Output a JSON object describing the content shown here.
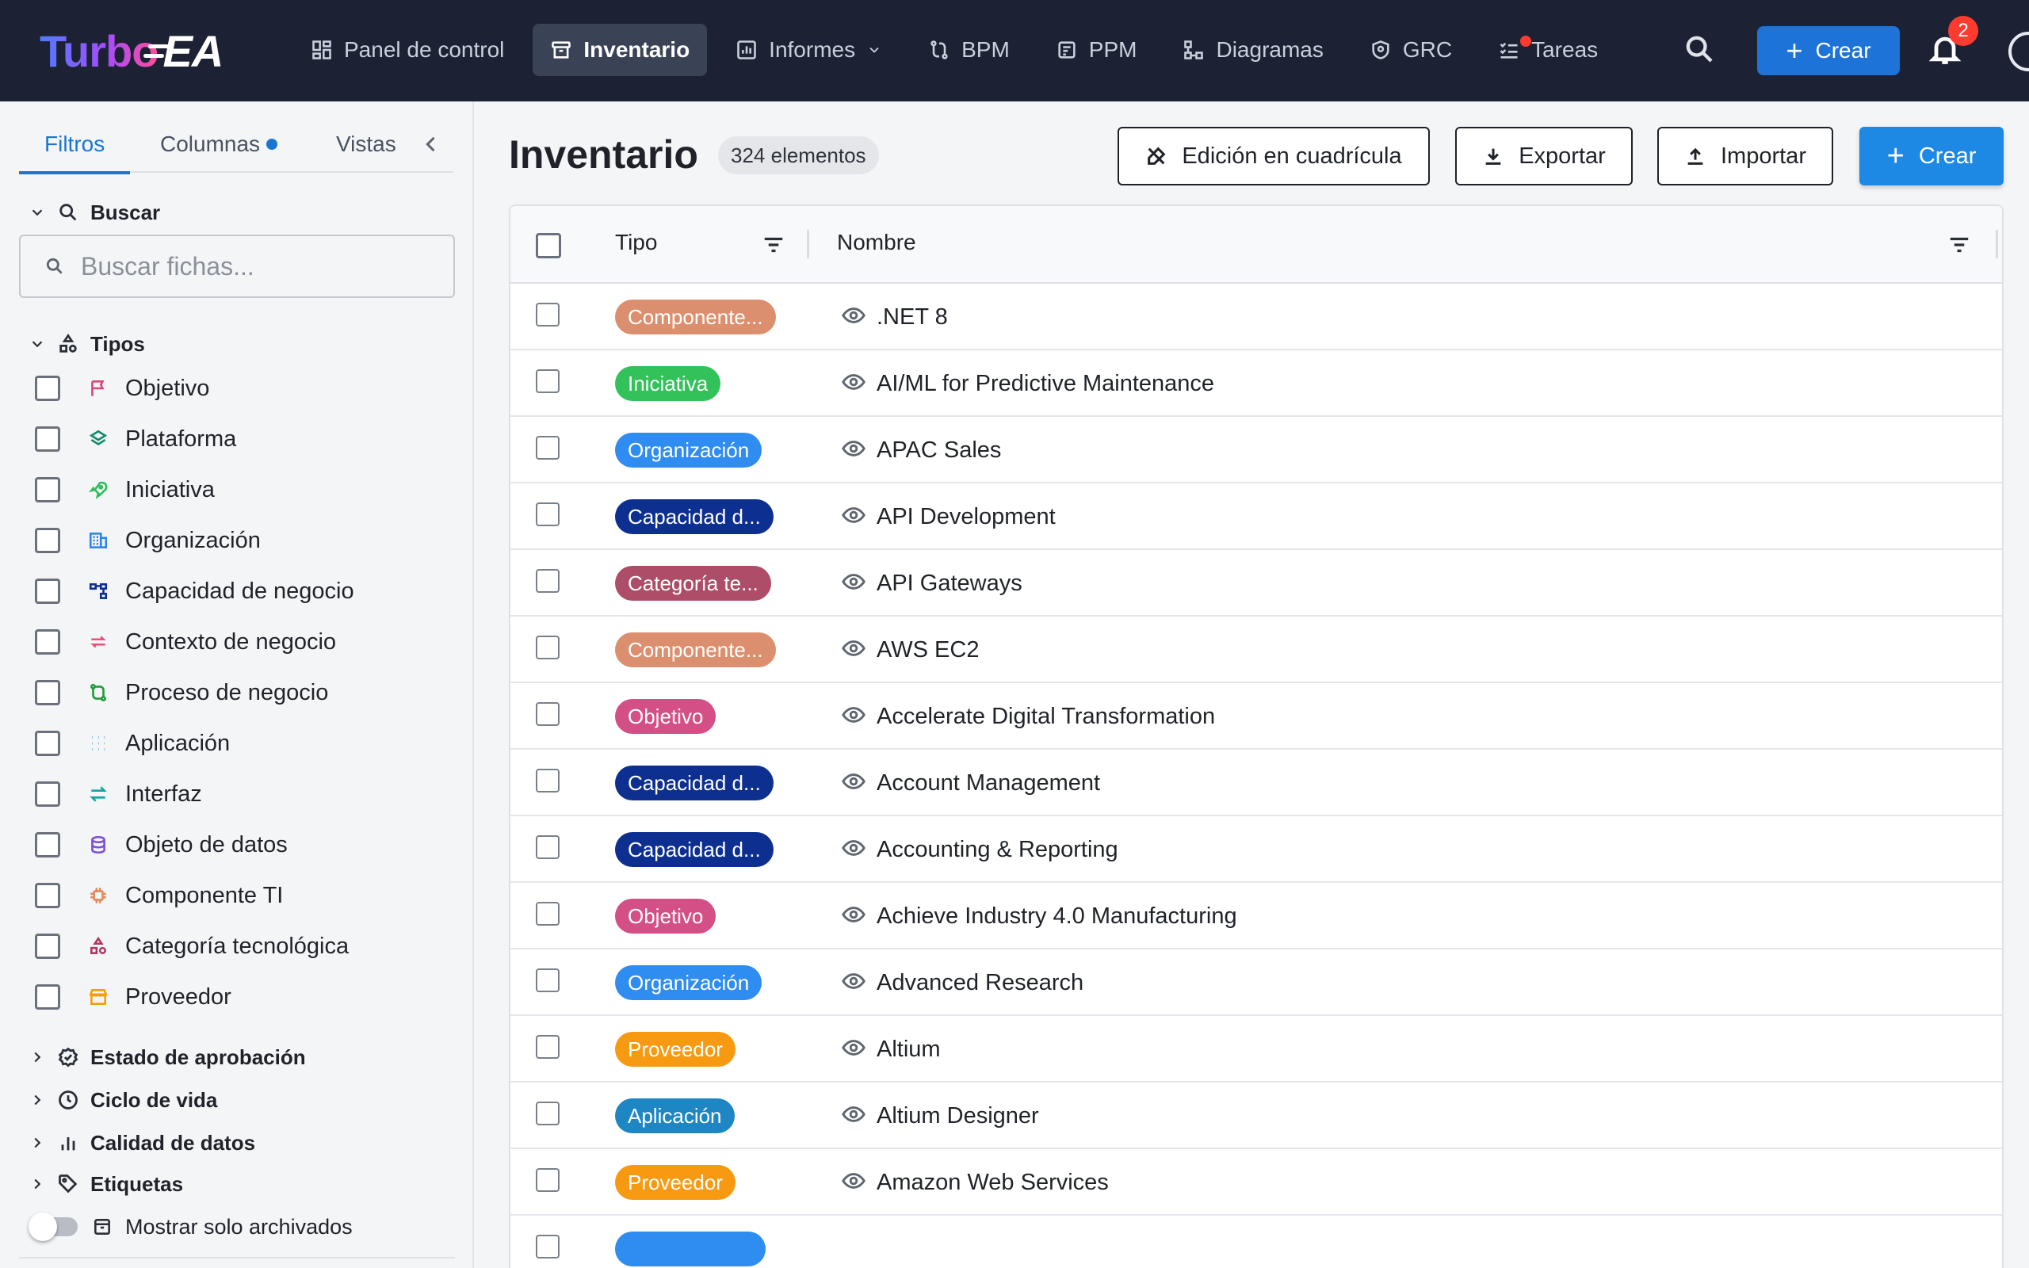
{
  "app": {
    "logo_turbo": "Turbo",
    "logo_ea": "EA"
  },
  "nav": {
    "items": [
      {
        "label": "Panel de control",
        "icon": "dashboard-icon"
      },
      {
        "label": "Inventario",
        "icon": "inventory-icon",
        "active": true
      },
      {
        "label": "Informes",
        "icon": "reports-icon",
        "dropdown": true
      },
      {
        "label": "BPM",
        "icon": "bpm-icon"
      },
      {
        "label": "PPM",
        "icon": "ppm-icon"
      },
      {
        "label": "Diagramas",
        "icon": "diagrams-icon"
      },
      {
        "label": "GRC",
        "icon": "shield-icon"
      },
      {
        "label": "Tareas",
        "icon": "tasks-icon",
        "dot": true
      }
    ],
    "create_label": "Crear",
    "notifications_count": "2"
  },
  "sidebar": {
    "tabs": {
      "filters": "Filtros",
      "columns": "Columnas",
      "views": "Vistas"
    },
    "search": {
      "title": "Buscar",
      "placeholder": "Buscar fichas..."
    },
    "types": {
      "title": "Tipos",
      "items": [
        {
          "label": "Objetivo",
          "icon": "flag-icon",
          "color": "#d9467a"
        },
        {
          "label": "Plataforma",
          "icon": "layers-icon",
          "color": "#0f8a6a"
        },
        {
          "label": "Iniciativa",
          "icon": "rocket-icon",
          "color": "#2ebd5a"
        },
        {
          "label": "Organización",
          "icon": "building-icon",
          "color": "#2f86e8"
        },
        {
          "label": "Capacidad de negocio",
          "icon": "hierarchy-icon",
          "color": "#0d2f8f"
        },
        {
          "label": "Contexto de negocio",
          "icon": "swap-icon",
          "color": "#e8507a"
        },
        {
          "label": "Proceso de negocio",
          "icon": "process-icon",
          "color": "#1f9a3a"
        },
        {
          "label": "Aplicación",
          "icon": "grid-dots-icon",
          "color": "#1e88c8"
        },
        {
          "label": "Interfaz",
          "icon": "arrows-icon",
          "color": "#0ea5a0"
        },
        {
          "label": "Objeto de datos",
          "icon": "database-icon",
          "color": "#7b4fd8"
        },
        {
          "label": "Componente TI",
          "icon": "chip-icon",
          "color": "#e08a5a"
        },
        {
          "label": "Categoría tecnológica",
          "icon": "shapes-icon",
          "color": "#b03a5e"
        },
        {
          "label": "Proveedor",
          "icon": "store-icon",
          "color": "#f59e0b"
        }
      ]
    },
    "sections": [
      {
        "label": "Estado de aprobación",
        "icon": "approval-icon"
      },
      {
        "label": "Ciclo de vida",
        "icon": "clock-icon"
      },
      {
        "label": "Calidad de datos",
        "icon": "bar-chart-icon"
      },
      {
        "label": "Etiquetas",
        "icon": "tag-icon"
      }
    ],
    "archived_toggle": "Mostrar solo archivados"
  },
  "main": {
    "title": "Inventario",
    "count": "324 elementos",
    "actions": {
      "grid_edit": "Edición en cuadrícula",
      "export": "Exportar",
      "import": "Importar",
      "create": "Crear"
    },
    "columns": {
      "type": "Tipo",
      "name": "Nombre"
    },
    "rows": [
      {
        "type": "Componente...",
        "color": "#dc8f6e",
        "name": ".NET 8"
      },
      {
        "type": "Iniciativa",
        "color": "#33c25a",
        "name": "AI/ML for Predictive Maintenance"
      },
      {
        "type": "Organización",
        "color": "#2f8cf0",
        "name": "APAC Sales"
      },
      {
        "type": "Capacidad d...",
        "color": "#0d2f8f",
        "name": "API Development"
      },
      {
        "type": "Categoría te...",
        "color": "#ad4d68",
        "name": "API Gateways"
      },
      {
        "type": "Componente...",
        "color": "#dc8f6e",
        "name": "AWS EC2"
      },
      {
        "type": "Objetivo",
        "color": "#d44f86",
        "name": "Accelerate Digital Transformation"
      },
      {
        "type": "Capacidad d...",
        "color": "#0d2f8f",
        "name": "Account Management"
      },
      {
        "type": "Capacidad d...",
        "color": "#0d2f8f",
        "name": "Accounting & Reporting"
      },
      {
        "type": "Objetivo",
        "color": "#d44f86",
        "name": "Achieve Industry 4.0 Manufacturing"
      },
      {
        "type": "Organización",
        "color": "#2f8cf0",
        "name": "Advanced Research"
      },
      {
        "type": "Proveedor",
        "color": "#f79a12",
        "name": "Altium"
      },
      {
        "type": "Aplicación",
        "color": "#1f86c4",
        "name": "Altium Designer"
      },
      {
        "type": "Proveedor",
        "color": "#f79a12",
        "name": "Amazon Web Services"
      }
    ]
  }
}
